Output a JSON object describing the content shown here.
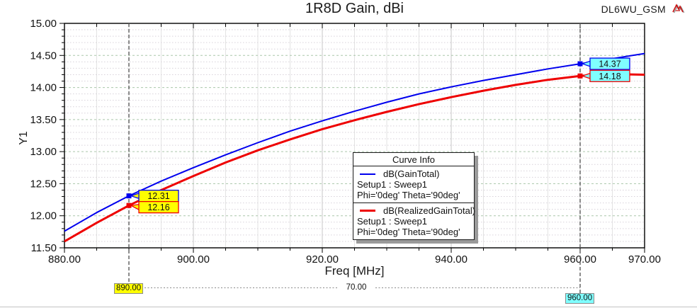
{
  "header": {
    "title": "1R8D Gain, dBi",
    "brand": "DL6WU_GSM"
  },
  "icons": {
    "brand_logo": "ansoft-logo"
  },
  "chart_data": {
    "type": "line",
    "title": "1R8D Gain, dBi",
    "xlabel": "Freq [MHz]",
    "ylabel": "Y1",
    "xlim": [
      880,
      970
    ],
    "ylim": [
      11.5,
      15.0
    ],
    "x_major_ticks": [
      880,
      900,
      920,
      940,
      960,
      970
    ],
    "x_tick_labels": [
      "880.00",
      "900.00",
      "920.00",
      "940.00",
      "960.00",
      "970.00"
    ],
    "x_minor_step": 5,
    "x_major_step": 20,
    "y_major_step": 0.5,
    "y_minor_step": 0.1,
    "y_tick_labels": [
      "15.00",
      "14.50",
      "14.00",
      "13.50",
      "13.00",
      "12.50",
      "12.00",
      "11.50"
    ],
    "grid": true,
    "legend_position": "center-right",
    "x": [
      880,
      885,
      890,
      895,
      900,
      905,
      910,
      915,
      920,
      925,
      930,
      935,
      940,
      945,
      950,
      955,
      960,
      965,
      970
    ],
    "series": [
      {
        "name": "dB(GainTotal)",
        "color": "#0000ee",
        "width": 2,
        "values": [
          11.76,
          12.05,
          12.31,
          12.54,
          12.75,
          12.95,
          13.14,
          13.32,
          13.48,
          13.63,
          13.77,
          13.9,
          14.01,
          14.11,
          14.2,
          14.29,
          14.37,
          14.45,
          14.53
        ]
      },
      {
        "name": "dB(RealizedGainTotal)",
        "color": "#ee0000",
        "width": 3,
        "values": [
          11.6,
          11.89,
          12.16,
          12.4,
          12.62,
          12.83,
          13.02,
          13.19,
          13.35,
          13.49,
          13.62,
          13.74,
          13.85,
          13.95,
          14.04,
          14.12,
          14.18,
          14.21,
          14.2
        ]
      }
    ],
    "markers": [
      {
        "x": 890,
        "x_label": "890.00",
        "fill": "#ffff00",
        "values": [
          "12.31",
          "12.16"
        ]
      },
      {
        "x": 960,
        "x_label": "960.00",
        "fill": "#7fffff",
        "values": [
          "14.37",
          "14.18"
        ]
      }
    ],
    "delta_label": "70.00"
  },
  "legend": {
    "title": "Curve Info",
    "entries": [
      {
        "label": "dB(GainTotal)",
        "color": "#0000ee",
        "setup": "Setup1 : Sweep1",
        "params": "Phi='0deg' Theta='90deg'"
      },
      {
        "label": "dB(RealizedGainTotal)",
        "color": "#ee0000",
        "setup": "Setup1 : Sweep1",
        "params": "Phi='0deg' Theta='90deg'"
      }
    ]
  }
}
